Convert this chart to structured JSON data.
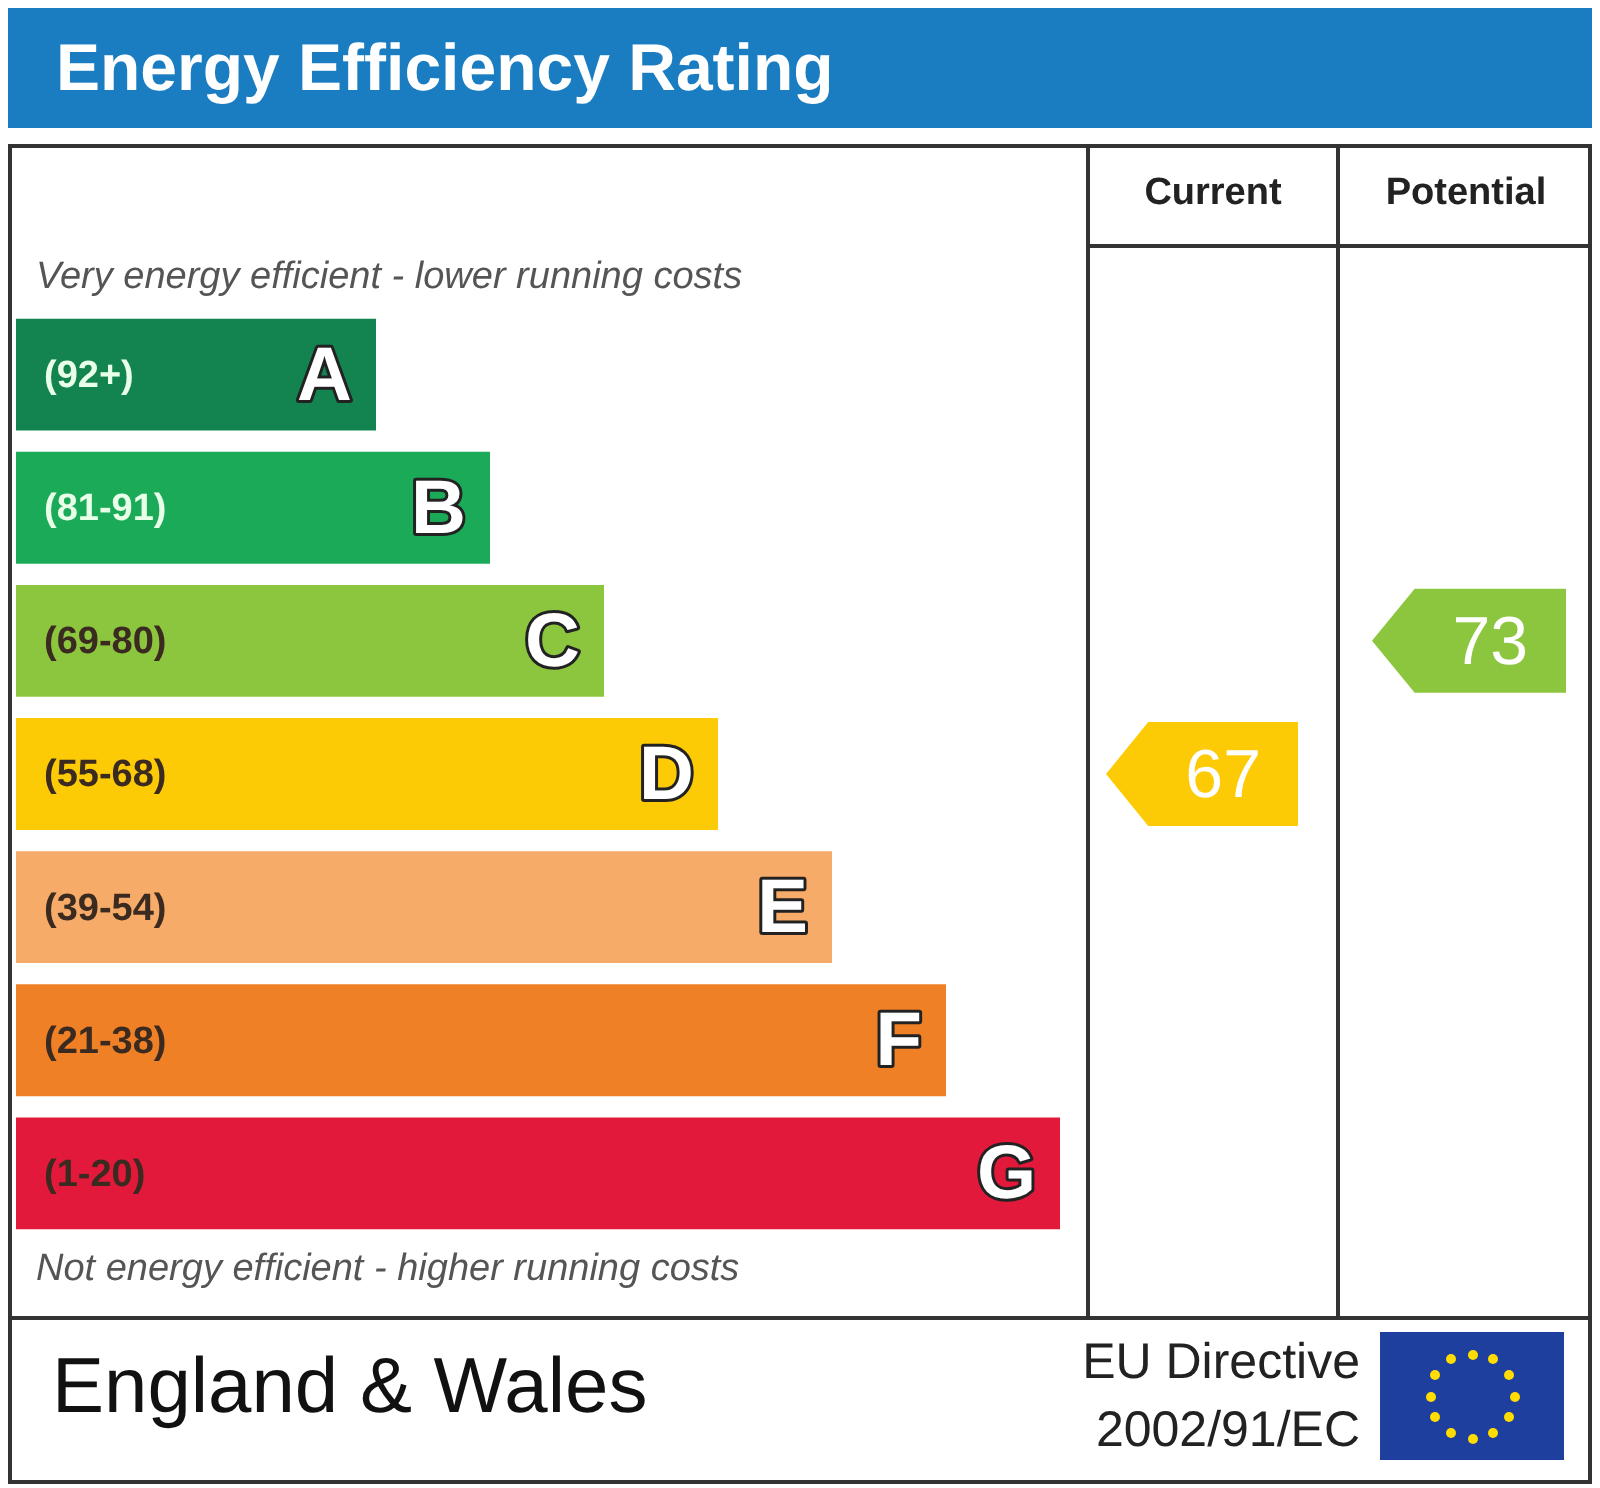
{
  "chart_data": {
    "type": "other",
    "title": "Energy Efficiency Rating",
    "categories": [
      "(92+)",
      "(81-91)",
      "(69-80)",
      "(55-68)",
      "(39-54)",
      "(21-38)",
      "(1-20)"
    ],
    "y2_categories": [
      "A",
      "B",
      "C",
      "D",
      "E",
      "F",
      "G"
    ],
    "colors": [
      "#13834f",
      "#1bab58",
      "#8cc63f",
      "#fccb05",
      "#f7ab68",
      "#f08026",
      "#e3193b"
    ],
    "series": [
      {
        "color": "#fccb05",
        "values": [
          null,
          null,
          null,
          67,
          null,
          null,
          null
        ]
      },
      {
        "color": "#8cc63f",
        "values": [
          null,
          null,
          73,
          null,
          null,
          null,
          null
        ]
      }
    ],
    "data_labels": true,
    "annotations": [
      "Current",
      "Potential",
      "Very energy efficient - lower running costs",
      "Not energy efficient - higher running costs",
      "England & Wales",
      "EU Directive 2002/91/EC"
    ]
  }
}
